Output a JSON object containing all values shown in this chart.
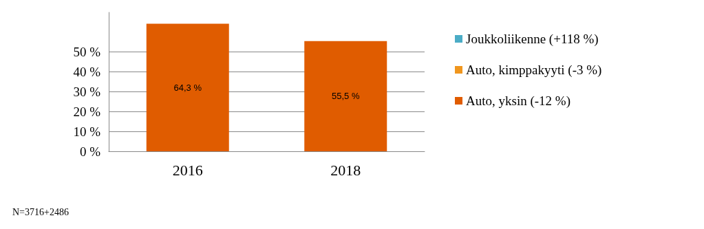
{
  "chart_data": {
    "type": "bar",
    "stacked": true,
    "categories": [
      "2016",
      "2018"
    ],
    "series": [
      {
        "name": "Auto, yksin (-12 %)",
        "color": "#e05c00",
        "values": [
          64.3,
          55.5
        ],
        "value_labels": [
          "64,3 %",
          "55,5 %"
        ]
      },
      {
        "name": "Auto, kimppakyyti (-3 %)",
        "color": "#f0961e",
        "values": [
          null,
          null
        ]
      },
      {
        "name": "Joukkoliikenne (+118 %)",
        "color": "#4bacc6",
        "values": [
          null,
          null
        ]
      }
    ],
    "ylim": [
      0,
      70
    ],
    "yticks": [
      {
        "value": 0,
        "label": "0 %"
      },
      {
        "value": 10,
        "label": "10 %"
      },
      {
        "value": 20,
        "label": "20 %"
      },
      {
        "value": 30,
        "label": "30 %"
      },
      {
        "value": 40,
        "label": "40 %"
      },
      {
        "value": 50,
        "label": "50 %"
      }
    ],
    "grid": "y",
    "legend": "right",
    "annotations": [
      "N=3716+2486"
    ]
  }
}
